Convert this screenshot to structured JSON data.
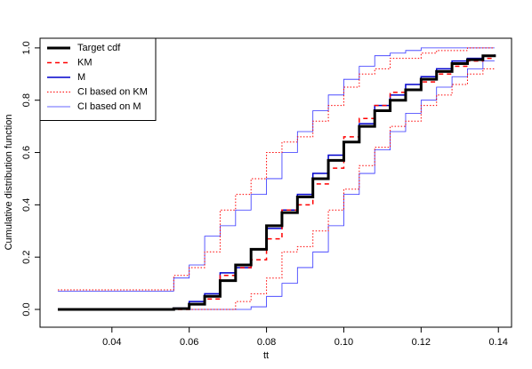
{
  "chart_data": {
    "type": "step",
    "x_label": "tt",
    "y_label": "Cumulative distribution function",
    "x": [
      0.026,
      0.056,
      0.06,
      0.064,
      0.068,
      0.072,
      0.076,
      0.08,
      0.084,
      0.088,
      0.092,
      0.096,
      0.1,
      0.104,
      0.108,
      0.112,
      0.116,
      0.12,
      0.124,
      0.128,
      0.132,
      0.136,
      0.139
    ],
    "series": [
      {
        "name": "Target cdf",
        "color": "#000000",
        "width": 3,
        "dash": "none",
        "values": [
          0,
          0.003,
          0.02,
          0.05,
          0.11,
          0.17,
          0.23,
          0.32,
          0.37,
          0.43,
          0.5,
          0.57,
          0.64,
          0.7,
          0.76,
          0.8,
          0.84,
          0.88,
          0.91,
          0.94,
          0.955,
          0.97,
          0.975
        ]
      },
      {
        "name": "KM",
        "color": "#ff0000",
        "width": 1.5,
        "dash": "5,4",
        "values": [
          0,
          0,
          0.02,
          0.04,
          0.13,
          0.16,
          0.19,
          0.27,
          0.38,
          0.4,
          0.48,
          0.54,
          0.66,
          0.73,
          0.78,
          0.83,
          0.84,
          0.87,
          0.9,
          0.93,
          0.95,
          0.96,
          0.96
        ]
      },
      {
        "name": "M",
        "color": "#0000cc",
        "width": 1.5,
        "dash": "none",
        "values": [
          0,
          0.005,
          0.03,
          0.06,
          0.14,
          0.16,
          0.23,
          0.31,
          0.38,
          0.44,
          0.52,
          0.59,
          0.64,
          0.71,
          0.78,
          0.82,
          0.86,
          0.89,
          0.92,
          0.95,
          0.96,
          0.97,
          0.975
        ]
      },
      {
        "name": "CI based on KM",
        "color": "#ff0000",
        "width": 1,
        "dash": "1.5,2",
        "lower": [
          0,
          0,
          0,
          0,
          0,
          0.03,
          0.06,
          0.12,
          0.22,
          0.24,
          0.3,
          0.38,
          0.46,
          0.55,
          0.62,
          0.7,
          0.72,
          0.78,
          0.82,
          0.86,
          0.9,
          0.92,
          0.92
        ],
        "upper": [
          0.075,
          0.13,
          0.16,
          0.22,
          0.38,
          0.44,
          0.5,
          0.6,
          0.64,
          0.66,
          0.72,
          0.78,
          0.85,
          0.9,
          0.92,
          0.96,
          0.96,
          0.98,
          0.99,
          0.99,
          1.0,
          1.0,
          1.0
        ]
      },
      {
        "name": "CI based on M",
        "color": "#3333ff",
        "width": 0.8,
        "dash": "none",
        "lower": [
          0,
          0,
          0,
          0,
          0,
          0,
          0.01,
          0.05,
          0.1,
          0.16,
          0.22,
          0.32,
          0.44,
          0.52,
          0.61,
          0.68,
          0.75,
          0.8,
          0.85,
          0.89,
          0.92,
          0.95,
          0.95
        ],
        "upper": [
          0.07,
          0.12,
          0.17,
          0.28,
          0.32,
          0.38,
          0.44,
          0.5,
          0.6,
          0.68,
          0.76,
          0.82,
          0.88,
          0.93,
          0.97,
          0.98,
          0.99,
          1.0,
          1.0,
          1.0,
          1.0,
          1.0,
          1.0
        ]
      }
    ],
    "xlim": [
      0.0214,
      0.1434
    ],
    "ylim": [
      -0.068,
      1.037
    ],
    "xticks": [
      0.04,
      0.06,
      0.08,
      {
        "value": 0.1,
        "label": "0.10"
      },
      0.12,
      0.14
    ],
    "yticks": [
      {
        "value": 0,
        "label": "0.0"
      },
      0.2,
      0.4,
      0.6,
      0.8,
      {
        "value": 1,
        "label": "1.0"
      }
    ],
    "legend": "top-left"
  }
}
